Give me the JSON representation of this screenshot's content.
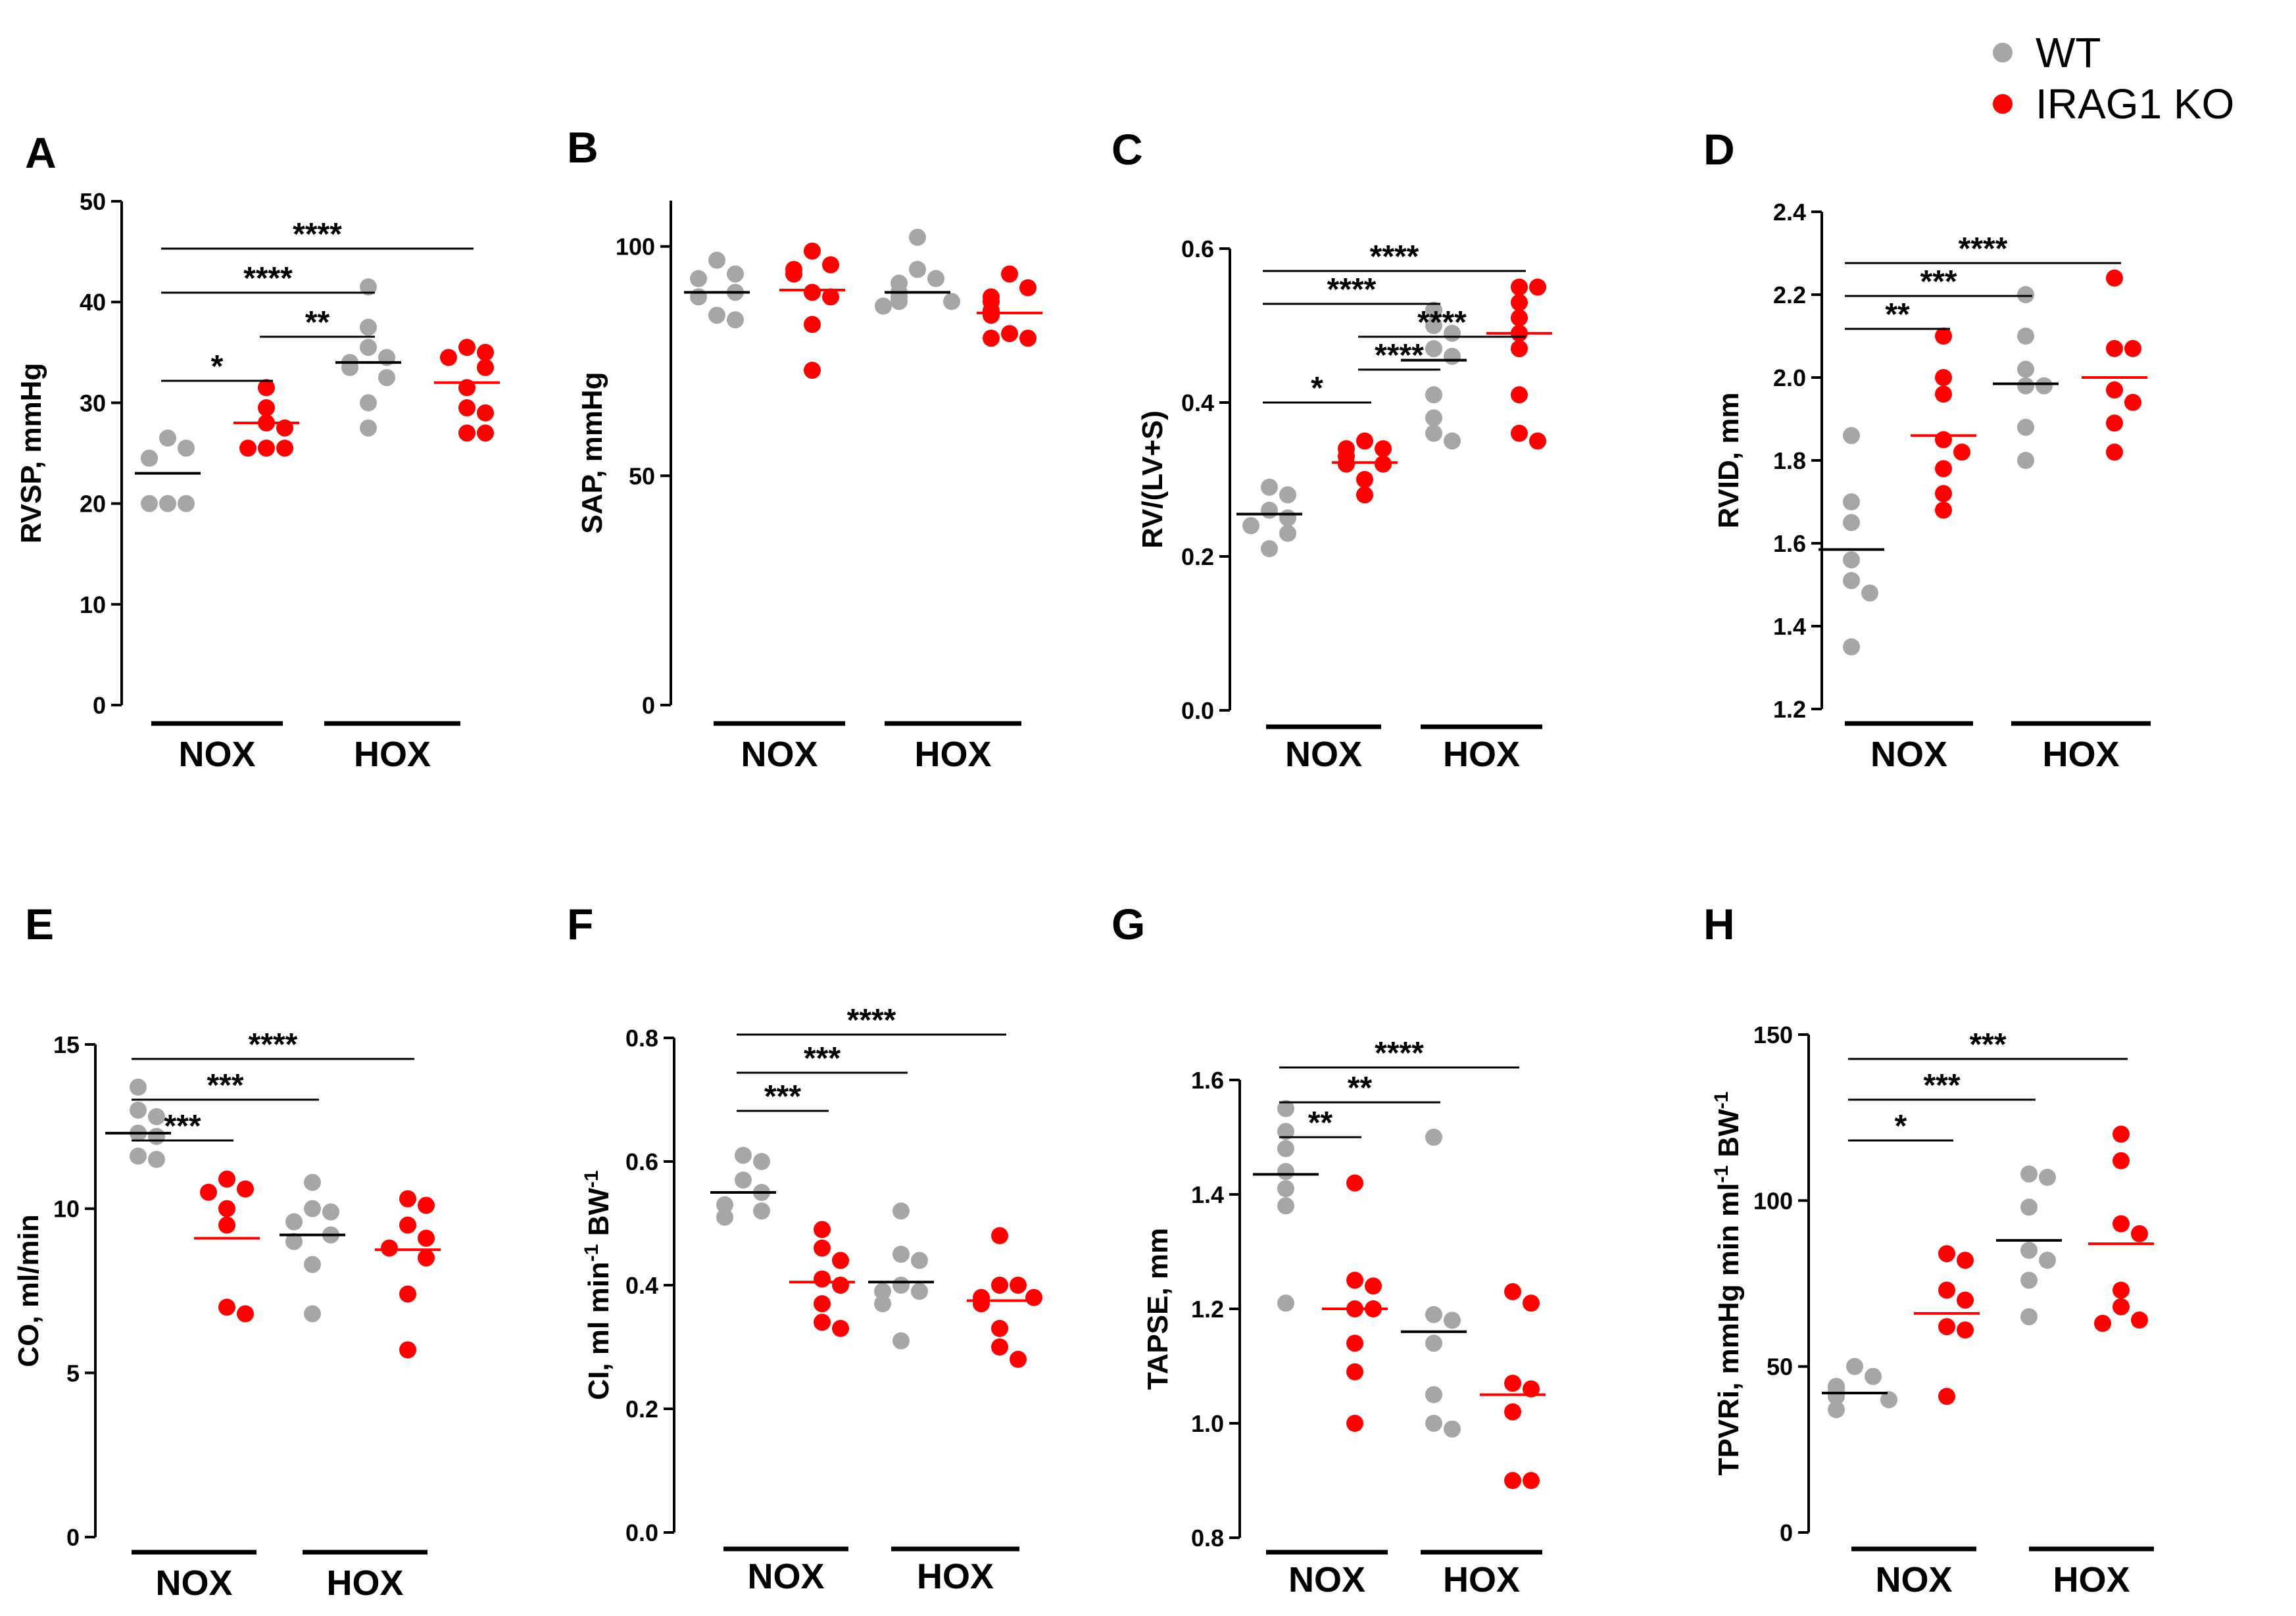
{
  "legend": {
    "items": [
      {
        "label": "WT",
        "color": "#a6a6a6"
      },
      {
        "label": "IRAG1 KO",
        "color": "#ff0000"
      }
    ]
  },
  "colors": {
    "wt": "#a6a6a6",
    "ko": "#ff0000",
    "axis": "#000000",
    "ko_mean_line": "#ff0000",
    "wt_mean_line": "#000000"
  },
  "chart_data": [
    {
      "panel": "A",
      "type": "scatter",
      "ylabel": "RVSP, mmHg",
      "ylim": [
        0,
        50
      ],
      "yticks": [
        0,
        10,
        20,
        30,
        40,
        50
      ],
      "ytick_labels": [
        "0",
        "10",
        "20",
        "30",
        "40",
        "50"
      ],
      "groups": [
        "NOX",
        "HOX"
      ],
      "series": [
        {
          "name": "WT",
          "group": "NOX",
          "values": [
            26.5,
            25.5,
            24.5,
            24.5,
            20,
            20,
            20
          ],
          "mean": 23.0
        },
        {
          "name": "IRAG1 KO",
          "group": "NOX",
          "values": [
            31.5,
            29.5,
            28,
            27.5,
            25.5,
            25.5,
            25.5
          ],
          "mean": 28.0
        },
        {
          "name": "WT",
          "group": "HOX",
          "values": [
            41.5,
            37.5,
            35.5,
            34.5,
            34,
            33.5,
            32.5,
            30,
            27.5
          ],
          "mean": 34.0
        },
        {
          "name": "IRAG1 KO",
          "group": "HOX",
          "values": [
            35.5,
            35,
            34.5,
            33.5,
            31.5,
            29.5,
            29,
            27,
            27
          ],
          "mean": 32.0
        }
      ],
      "significance": [
        {
          "from": 0,
          "to": 1,
          "label": "*"
        },
        {
          "from": 1,
          "to": 2,
          "label": "**"
        },
        {
          "from": 0,
          "to": 2,
          "label": "****"
        },
        {
          "from": 0,
          "to": 3,
          "label": "****"
        }
      ]
    },
    {
      "panel": "B",
      "type": "scatter",
      "ylabel": "SAP, mmHg",
      "ylim": [
        0,
        110
      ],
      "yticks": [
        0,
        50,
        100
      ],
      "ytick_labels": [
        "0",
        "50",
        "100"
      ],
      "groups": [
        "NOX",
        "HOX"
      ],
      "series": [
        {
          "name": "WT",
          "group": "NOX",
          "values": [
            97,
            94,
            93,
            90,
            89,
            85,
            84
          ],
          "mean": 90.0
        },
        {
          "name": "IRAG1 KO",
          "group": "NOX",
          "values": [
            99,
            96,
            95,
            94,
            90,
            89,
            83,
            73
          ],
          "mean": 90.5
        },
        {
          "name": "WT",
          "group": "HOX",
          "values": [
            102,
            95,
            93,
            92,
            90,
            89,
            88,
            88,
            87
          ],
          "mean": 90.0
        },
        {
          "name": "IRAG1 KO",
          "group": "HOX",
          "values": [
            94,
            91,
            89,
            88,
            86,
            85,
            81,
            80,
            80
          ],
          "mean": 85.5
        }
      ],
      "significance": []
    },
    {
      "panel": "C",
      "type": "scatter",
      "ylabel": "RV/(LV+S)",
      "ylim": [
        0,
        0.6
      ],
      "yticks": [
        0,
        0.2,
        0.4,
        0.6
      ],
      "ytick_labels": [
        "0.0",
        "0.2",
        "0.4",
        "0.6"
      ],
      "groups": [
        "NOX",
        "HOX"
      ],
      "series": [
        {
          "name": "WT",
          "group": "NOX",
          "values": [
            0.29,
            0.28,
            0.26,
            0.25,
            0.24,
            0.23,
            0.21
          ],
          "mean": 0.255
        },
        {
          "name": "IRAG1 KO",
          "group": "NOX",
          "values": [
            0.35,
            0.34,
            0.34,
            0.33,
            0.32,
            0.32,
            0.3,
            0.28
          ],
          "mean": 0.322
        },
        {
          "name": "WT",
          "group": "HOX",
          "values": [
            0.52,
            0.5,
            0.49,
            0.47,
            0.46,
            0.41,
            0.38,
            0.36,
            0.35
          ],
          "mean": 0.455
        },
        {
          "name": "IRAG1 KO",
          "group": "HOX",
          "values": [
            0.55,
            0.55,
            0.53,
            0.51,
            0.49,
            0.47,
            0.41,
            0.36,
            0.35
          ],
          "mean": 0.49
        }
      ],
      "significance": [
        {
          "from": 0,
          "to": 1,
          "label": "*"
        },
        {
          "from": 1,
          "to": 2,
          "label": "****"
        },
        {
          "from": 1,
          "to": 3,
          "label": "****"
        },
        {
          "from": 0,
          "to": 2,
          "label": "****"
        },
        {
          "from": 0,
          "to": 3,
          "label": "****"
        }
      ]
    },
    {
      "panel": "D",
      "type": "scatter",
      "ylabel": "RVID, mm",
      "ylim": [
        1.2,
        2.4
      ],
      "yticks": [
        1.2,
        1.4,
        1.6,
        1.8,
        2.0,
        2.2,
        2.4
      ],
      "ytick_labels": [
        "1.2",
        "1.4",
        "1.6",
        "1.8",
        "2.0",
        "2.2",
        "2.4"
      ],
      "groups": [
        "NOX",
        "HOX"
      ],
      "series": [
        {
          "name": "WT",
          "group": "NOX",
          "values": [
            1.86,
            1.7,
            1.65,
            1.56,
            1.51,
            1.48,
            1.35
          ],
          "mean": 1.585
        },
        {
          "name": "IRAG1 KO",
          "group": "NOX",
          "values": [
            2.1,
            2.0,
            1.96,
            1.85,
            1.82,
            1.78,
            1.72,
            1.68
          ],
          "mean": 1.86
        },
        {
          "name": "WT",
          "group": "HOX",
          "values": [
            2.2,
            2.1,
            2.02,
            1.98,
            1.98,
            1.88,
            1.8
          ],
          "mean": 1.985
        },
        {
          "name": "IRAG1 KO",
          "group": "HOX",
          "values": [
            2.24,
            2.07,
            2.07,
            1.97,
            1.94,
            1.89,
            1.82
          ],
          "mean": 2.0
        }
      ],
      "significance": [
        {
          "from": 0,
          "to": 1,
          "label": "**"
        },
        {
          "from": 0,
          "to": 2,
          "label": "***"
        },
        {
          "from": 0,
          "to": 3,
          "label": "****"
        }
      ]
    },
    {
      "panel": "E",
      "type": "scatter",
      "ylabel": "CO, ml/min",
      "ylim": [
        0,
        15
      ],
      "yticks": [
        0,
        5,
        10,
        15
      ],
      "ytick_labels": [
        "0",
        "5",
        "10",
        "15"
      ],
      "groups": [
        "NOX",
        "HOX"
      ],
      "series": [
        {
          "name": "WT",
          "group": "NOX",
          "values": [
            13.7,
            13.0,
            12.8,
            12.3,
            12.2,
            11.6,
            11.5
          ],
          "mean": 12.3
        },
        {
          "name": "IRAG1 KO",
          "group": "NOX",
          "values": [
            10.9,
            10.6,
            10.5,
            10.0,
            9.5,
            7.0,
            6.8
          ],
          "mean": 9.1
        },
        {
          "name": "WT",
          "group": "HOX",
          "values": [
            10.8,
            10.0,
            9.9,
            9.6,
            9.2,
            9.0,
            8.3,
            6.8
          ],
          "mean": 9.2
        },
        {
          "name": "IRAG1 KO",
          "group": "HOX",
          "values": [
            10.3,
            10.1,
            9.5,
            9.1,
            8.8,
            8.5,
            7.4,
            5.7
          ],
          "mean": 8.75
        }
      ],
      "significance": [
        {
          "from": 0,
          "to": 1,
          "label": "***"
        },
        {
          "from": 0,
          "to": 2,
          "label": "***"
        },
        {
          "from": 0,
          "to": 3,
          "label": "****"
        }
      ]
    },
    {
      "panel": "F",
      "type": "scatter",
      "ylabel": "CI, ml min-1 BW-1",
      "ylim": [
        0,
        0.8
      ],
      "yticks": [
        0,
        0.2,
        0.4,
        0.6,
        0.8
      ],
      "ytick_labels": [
        "0.0",
        "0.2",
        "0.4",
        "0.6",
        "0.8"
      ],
      "ylabel_parts": {
        "a": "CI, ml min",
        "a_sup": "-1",
        "b": " BW",
        "b_sup": "-1"
      },
      "groups": [
        "NOX",
        "HOX"
      ],
      "series": [
        {
          "name": "WT",
          "group": "NOX",
          "values": [
            0.61,
            0.6,
            0.57,
            0.55,
            0.53,
            0.52,
            0.51
          ],
          "mean": 0.55
        },
        {
          "name": "IRAG1 KO",
          "group": "NOX",
          "values": [
            0.49,
            0.46,
            0.44,
            0.41,
            0.4,
            0.37,
            0.34,
            0.33
          ],
          "mean": 0.405
        },
        {
          "name": "WT",
          "group": "HOX",
          "values": [
            0.52,
            0.45,
            0.44,
            0.4,
            0.39,
            0.39,
            0.37,
            0.31
          ],
          "mean": 0.405
        },
        {
          "name": "IRAG1 KO",
          "group": "HOX",
          "values": [
            0.48,
            0.4,
            0.4,
            0.38,
            0.38,
            0.37,
            0.33,
            0.3,
            0.28
          ],
          "mean": 0.375
        }
      ],
      "significance": [
        {
          "from": 0,
          "to": 1,
          "label": "***"
        },
        {
          "from": 0,
          "to": 2,
          "label": "***"
        },
        {
          "from": 0,
          "to": 3,
          "label": "****"
        }
      ]
    },
    {
      "panel": "G",
      "type": "scatter",
      "ylabel": "TAPSE, mm",
      "ylim": [
        0.8,
        1.6
      ],
      "yticks": [
        0.8,
        1.0,
        1.2,
        1.4,
        1.6
      ],
      "ytick_labels": [
        "0.8",
        "1.0",
        "1.2",
        "1.4",
        "1.6"
      ],
      "groups": [
        "NOX",
        "HOX"
      ],
      "series": [
        {
          "name": "WT",
          "group": "NOX",
          "values": [
            1.55,
            1.51,
            1.48,
            1.44,
            1.41,
            1.38,
            1.21
          ],
          "mean": 1.435
        },
        {
          "name": "IRAG1 KO",
          "group": "NOX",
          "values": [
            1.42,
            1.25,
            1.24,
            1.2,
            1.2,
            1.14,
            1.09,
            1.0
          ],
          "mean": 1.2
        },
        {
          "name": "WT",
          "group": "HOX",
          "values": [
            1.5,
            1.19,
            1.18,
            1.14,
            1.05,
            1.0,
            0.99
          ],
          "mean": 1.16
        },
        {
          "name": "IRAG1 KO",
          "group": "HOX",
          "values": [
            1.23,
            1.21,
            1.07,
            1.06,
            1.02,
            0.9,
            0.9
          ],
          "mean": 1.05
        }
      ],
      "significance": [
        {
          "from": 0,
          "to": 1,
          "label": "**"
        },
        {
          "from": 0,
          "to": 2,
          "label": "**"
        },
        {
          "from": 0,
          "to": 3,
          "label": "****"
        }
      ]
    },
    {
      "panel": "H",
      "type": "scatter",
      "ylabel": "TPVRi, mmHg min ml-1 BW-1",
      "ylim": [
        0,
        150
      ],
      "yticks": [
        0,
        50,
        100,
        150
      ],
      "ytick_labels": [
        "0",
        "50",
        "100",
        "150"
      ],
      "ylabel_parts": {
        "a": "TPVRi, mmHg min ml",
        "a_sup": "-1",
        "b": " BW",
        "b_sup": "-1"
      },
      "groups": [
        "NOX",
        "HOX"
      ],
      "series": [
        {
          "name": "WT",
          "group": "NOX",
          "values": [
            50,
            47,
            44,
            43,
            41,
            40,
            37
          ],
          "mean": 42.0
        },
        {
          "name": "IRAG1 KO",
          "group": "NOX",
          "values": [
            84,
            82,
            73,
            70,
            62,
            61,
            41
          ],
          "mean": 66.0
        },
        {
          "name": "WT",
          "group": "HOX",
          "values": [
            108,
            107,
            98,
            85,
            82,
            76,
            65
          ],
          "mean": 88.0
        },
        {
          "name": "IRAG1 KO",
          "group": "HOX",
          "values": [
            120,
            112,
            93,
            90,
            73,
            68,
            64,
            63
          ],
          "mean": 87.0
        }
      ],
      "significance": [
        {
          "from": 0,
          "to": 1,
          "label": "*"
        },
        {
          "from": 0,
          "to": 2,
          "label": "***"
        },
        {
          "from": 0,
          "to": 3,
          "label": "***"
        }
      ]
    }
  ]
}
